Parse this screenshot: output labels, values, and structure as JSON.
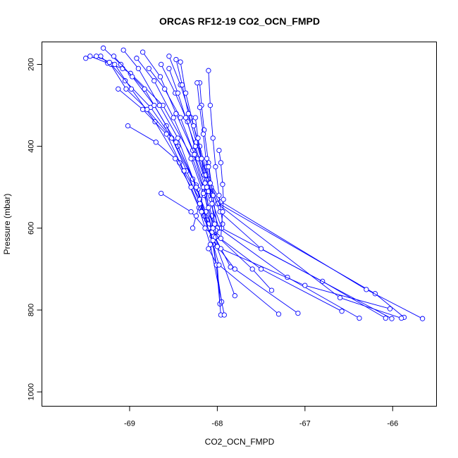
{
  "chart_data": {
    "type": "line",
    "title": "ORCAS RF12-19 CO2_OCN_FMPD",
    "xlabel": "CO2_OCN_FMPD",
    "ylabel": "Pressure (mbar)",
    "xlim": [
      -70.0,
      -65.5
    ],
    "ylim": [
      1035,
      145
    ],
    "y_inverted": true,
    "x_ticks": [
      -69,
      -68,
      -67,
      -66
    ],
    "y_ticks": [
      200,
      400,
      600,
      800,
      1000
    ],
    "grid": false,
    "legend": "none",
    "series_color": "#0000ff",
    "marker": "open-circle",
    "series": [
      {
        "x": [
          -69.5,
          -69.33,
          -69.25,
          -69.08,
          -68.99,
          -68.62,
          -68.28,
          -68.15,
          -68.06,
          -68.02,
          -68.1,
          -68.0,
          -67.97
        ],
        "y": [
          185,
          180,
          197,
          210,
          222,
          300,
          430,
          510,
          570,
          610,
          650,
          690,
          785
        ]
      },
      {
        "x": [
          -69.45,
          -69.21,
          -69.05,
          -68.76,
          -68.45,
          -68.22,
          -68.12,
          -68.05,
          -67.95
        ],
        "y": [
          180,
          200,
          240,
          305,
          400,
          505,
          580,
          640,
          780
        ]
      },
      {
        "x": [
          -69.3,
          -69.1,
          -68.83,
          -68.58,
          -68.35,
          -68.2,
          -68.06,
          -68.01,
          -67.96
        ],
        "y": [
          160,
          200,
          260,
          350,
          460,
          540,
          620,
          690,
          812
        ]
      },
      {
        "x": [
          -69.38,
          -69.17,
          -68.98,
          -68.71,
          -68.43,
          -68.21,
          -68.08,
          -67.92
        ],
        "y": [
          180,
          200,
          260,
          340,
          440,
          550,
          640,
          812
        ]
      },
      {
        "x": [
          -69.23,
          -69.04,
          -68.8,
          -68.52,
          -68.28,
          -68.13,
          -68.02
        ],
        "y": [
          195,
          260,
          310,
          380,
          480,
          560,
          620
        ]
      },
      {
        "x": [
          -69.18,
          -68.97,
          -68.72,
          -68.47,
          -68.24,
          -68.15,
          -67.85
        ],
        "y": [
          180,
          230,
          300,
          390,
          495,
          570,
          695
        ]
      },
      {
        "x": [
          -69.07,
          -68.9,
          -68.66,
          -68.45,
          -68.24,
          -68.1,
          -67.8
        ],
        "y": [
          165,
          210,
          300,
          380,
          500,
          590,
          765
        ]
      },
      {
        "x": [
          -69.13,
          -68.85,
          -68.58,
          -68.38,
          -68.2,
          -68.1,
          -67.98,
          -67.3
        ],
        "y": [
          260,
          310,
          370,
          460,
          530,
          600,
          690,
          810
        ]
      },
      {
        "x": [
          -69.02,
          -68.7,
          -68.48,
          -68.3,
          -68.18,
          -68.05,
          -67.8,
          -67.08
        ],
        "y": [
          350,
          390,
          430,
          500,
          560,
          630,
          700,
          808
        ]
      },
      {
        "x": [
          -68.92,
          -68.72,
          -68.5,
          -68.3,
          -68.15,
          -68.0,
          -67.6,
          -67.38
        ],
        "y": [
          185,
          240,
          330,
          430,
          520,
          620,
          700,
          752
        ]
      },
      {
        "x": [
          -68.85,
          -68.65,
          -68.47,
          -68.28,
          -68.16,
          -68.06,
          -67.5,
          -66.58
        ],
        "y": [
          170,
          230,
          320,
          410,
          500,
          610,
          700,
          803
        ]
      },
      {
        "x": [
          -68.78,
          -68.6,
          -68.42,
          -68.26,
          -68.12,
          -67.98,
          -67.2,
          -66.38
        ],
        "y": [
          210,
          260,
          330,
          420,
          510,
          600,
          720,
          820
        ]
      },
      {
        "x": [
          -68.64,
          -68.48,
          -68.34,
          -68.22,
          -68.1,
          -67.95,
          -66.8,
          -66.08
        ],
        "y": [
          200,
          270,
          340,
          430,
          510,
          600,
          730,
          820
        ]
      },
      {
        "x": [
          -68.64,
          -68.3,
          -68.14,
          -68.04,
          -67.96,
          -67.0,
          -66.03
        ],
        "y": [
          515,
          560,
          600,
          620,
          650,
          740,
          797
        ]
      },
      {
        "x": [
          -68.55,
          -68.42,
          -68.3,
          -68.2,
          -68.1,
          -67.98,
          -66.2,
          -65.87
        ],
        "y": [
          180,
          250,
          330,
          400,
          480,
          540,
          760,
          818
        ]
      },
      {
        "x": [
          -68.55,
          -68.45,
          -68.36,
          -68.25,
          -68.15,
          -68.0,
          -66.6,
          -65.9
        ],
        "y": [
          210,
          270,
          330,
          400,
          470,
          540,
          770,
          820
        ]
      },
      {
        "x": [
          -68.47,
          -68.4,
          -68.33,
          -68.24,
          -68.13,
          -67.96,
          -66.3,
          -65.66
        ],
        "y": [
          188,
          250,
          320,
          390,
          470,
          535,
          750,
          821
        ]
      },
      {
        "x": [
          -68.42,
          -68.36,
          -68.27,
          -68.18,
          -68.07,
          -67.97,
          -67.5,
          -66.01
        ],
        "y": [
          194,
          270,
          350,
          430,
          500,
          560,
          650,
          821
        ]
      },
      {
        "x": [
          -68.2,
          -68.18,
          -68.15,
          -68.1,
          -68.05,
          -68.0
        ],
        "y": [
          245,
          300,
          360,
          440,
          520,
          600
        ]
      },
      {
        "x": [
          -68.23,
          -68.2,
          -68.16,
          -68.12,
          -68.07,
          -68.02
        ],
        "y": [
          245,
          305,
          370,
          450,
          530,
          605
        ]
      },
      {
        "x": [
          -68.1,
          -68.08,
          -68.05,
          -68.02,
          -67.98,
          -67.94
        ],
        "y": [
          215,
          300,
          380,
          450,
          520,
          590
        ]
      },
      {
        "x": [
          -67.98,
          -67.96,
          -67.94,
          -67.93,
          -67.94,
          -67.96
        ],
        "y": [
          410,
          440,
          493,
          530,
          560,
          625
        ]
      },
      {
        "x": [
          -68.25,
          -68.22,
          -68.18,
          -68.14,
          -68.1,
          -68.05,
          -68.02
        ],
        "y": [
          330,
          380,
          430,
          490,
          550,
          600,
          622
        ]
      },
      {
        "x": [
          -68.12,
          -68.1,
          -68.08,
          -68.06,
          -68.03,
          -68.0
        ],
        "y": [
          430,
          450,
          490,
          540,
          590,
          645
        ]
      },
      {
        "x": [
          -68.28,
          -68.24,
          -68.2,
          -68.16,
          -68.12
        ],
        "y": [
          600,
          570,
          540,
          515,
          500
        ]
      }
    ]
  }
}
